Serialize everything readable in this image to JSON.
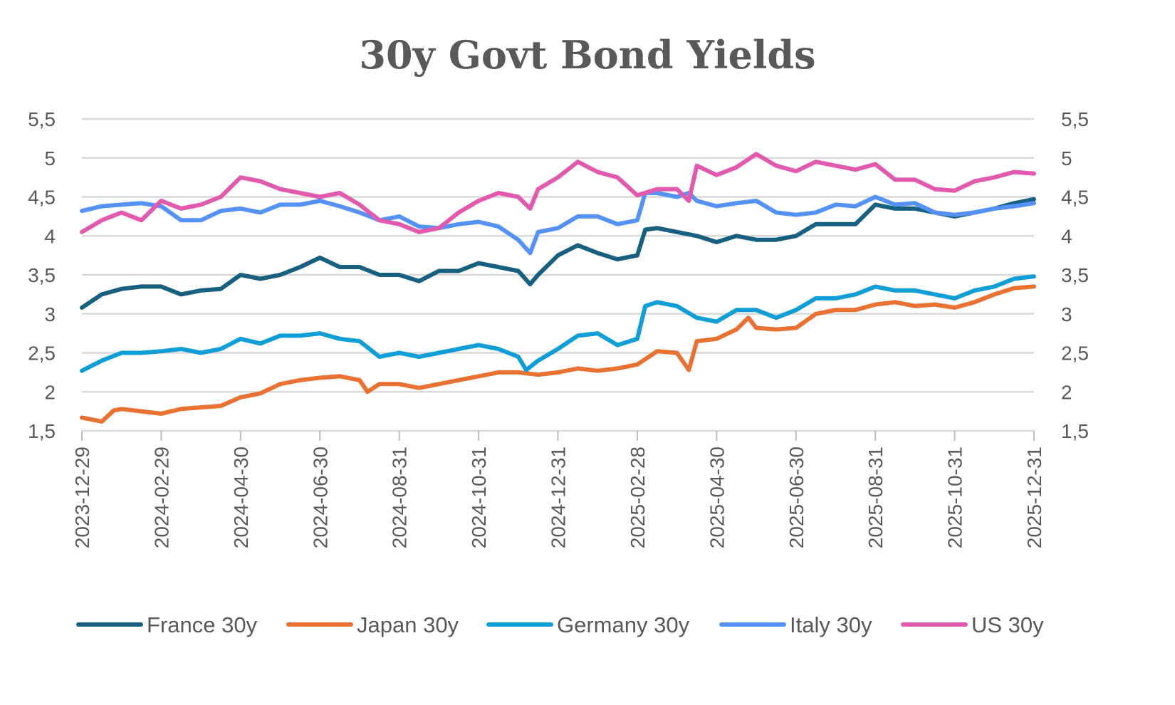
{
  "chart_data": {
    "type": "line",
    "title": "30y Govt Bond Yields",
    "xlabel": "",
    "ylabel": "",
    "ylim": [
      1.5,
      5.5
    ],
    "y_ticks": [
      "1,5",
      "2",
      "2,5",
      "3",
      "3,5",
      "4",
      "4,5",
      "5",
      "5,5"
    ],
    "y_tick_values": [
      1.5,
      2,
      2.5,
      3,
      3.5,
      4,
      4.5,
      5,
      5.5
    ],
    "x_ticks": [
      "2023-12-29",
      "2024-02-29",
      "2024-04-30",
      "2024-06-30",
      "2024-08-31",
      "2024-10-31",
      "2024-12-31",
      "2025-02-28",
      "2025-04-30",
      "2025-06-30",
      "2025-08-31",
      "2025-10-31",
      "2025-12-31"
    ],
    "x_unit": "months since 2023-12-29",
    "xlim": [
      0,
      24
    ],
    "grid": true,
    "legend_position": "bottom",
    "series": [
      {
        "name": "France 30y",
        "color": "#17607f",
        "points": [
          [
            0,
            3.08
          ],
          [
            0.5,
            3.25
          ],
          [
            1,
            3.32
          ],
          [
            1.5,
            3.35
          ],
          [
            2,
            3.35
          ],
          [
            2.5,
            3.25
          ],
          [
            3,
            3.3
          ],
          [
            3.5,
            3.32
          ],
          [
            4,
            3.5
          ],
          [
            4.5,
            3.45
          ],
          [
            5,
            3.5
          ],
          [
            5.5,
            3.6
          ],
          [
            6,
            3.72
          ],
          [
            6.5,
            3.6
          ],
          [
            7,
            3.6
          ],
          [
            7.5,
            3.5
          ],
          [
            8,
            3.5
          ],
          [
            8.5,
            3.42
          ],
          [
            9,
            3.55
          ],
          [
            9.5,
            3.55
          ],
          [
            10,
            3.65
          ],
          [
            10.5,
            3.6
          ],
          [
            11,
            3.55
          ],
          [
            11.3,
            3.38
          ],
          [
            11.5,
            3.5
          ],
          [
            12,
            3.75
          ],
          [
            12.5,
            3.88
          ],
          [
            13,
            3.78
          ],
          [
            13.5,
            3.7
          ],
          [
            14,
            3.75
          ],
          [
            14.2,
            4.08
          ],
          [
            14.5,
            4.1
          ],
          [
            15,
            4.05
          ],
          [
            15.5,
            4.0
          ],
          [
            16,
            3.92
          ],
          [
            16.5,
            4.0
          ],
          [
            17,
            3.95
          ],
          [
            17.5,
            3.95
          ],
          [
            18,
            4.0
          ],
          [
            18.5,
            4.15
          ],
          [
            19,
            4.15
          ],
          [
            19.5,
            4.15
          ],
          [
            20,
            4.4
          ],
          [
            20.5,
            4.35
          ],
          [
            21,
            4.35
          ],
          [
            21.5,
            4.3
          ],
          [
            22,
            4.25
          ],
          [
            22.5,
            4.3
          ],
          [
            23,
            4.35
          ],
          [
            23.5,
            4.42
          ],
          [
            24,
            4.47
          ]
        ]
      },
      {
        "name": "Japan 30y",
        "color": "#e97132",
        "points": [
          [
            0,
            1.67
          ],
          [
            0.5,
            1.62
          ],
          [
            0.8,
            1.76
          ],
          [
            1,
            1.78
          ],
          [
            1.5,
            1.75
          ],
          [
            2,
            1.72
          ],
          [
            2.5,
            1.78
          ],
          [
            3,
            1.8
          ],
          [
            3.5,
            1.82
          ],
          [
            4,
            1.93
          ],
          [
            4.5,
            1.98
          ],
          [
            5,
            2.1
          ],
          [
            5.5,
            2.15
          ],
          [
            6,
            2.18
          ],
          [
            6.5,
            2.2
          ],
          [
            7,
            2.15
          ],
          [
            7.2,
            2.0
          ],
          [
            7.5,
            2.1
          ],
          [
            8,
            2.1
          ],
          [
            8.5,
            2.05
          ],
          [
            9,
            2.1
          ],
          [
            9.5,
            2.15
          ],
          [
            10,
            2.2
          ],
          [
            10.5,
            2.25
          ],
          [
            11,
            2.25
          ],
          [
            11.5,
            2.22
          ],
          [
            12,
            2.25
          ],
          [
            12.5,
            2.3
          ],
          [
            13,
            2.27
          ],
          [
            13.5,
            2.3
          ],
          [
            14,
            2.35
          ],
          [
            14.5,
            2.52
          ],
          [
            15,
            2.5
          ],
          [
            15.3,
            2.28
          ],
          [
            15.5,
            2.65
          ],
          [
            16,
            2.68
          ],
          [
            16.5,
            2.8
          ],
          [
            16.8,
            2.95
          ],
          [
            17,
            2.82
          ],
          [
            17.5,
            2.8
          ],
          [
            18,
            2.82
          ],
          [
            18.5,
            3.0
          ],
          [
            19,
            3.05
          ],
          [
            19.5,
            3.05
          ],
          [
            20,
            3.12
          ],
          [
            20.5,
            3.15
          ],
          [
            21,
            3.1
          ],
          [
            21.5,
            3.12
          ],
          [
            22,
            3.08
          ],
          [
            22.5,
            3.15
          ],
          [
            23,
            3.25
          ],
          [
            23.5,
            3.33
          ],
          [
            24,
            3.35
          ]
        ]
      },
      {
        "name": "Germany 30y",
        "color": "#0f9ed5",
        "points": [
          [
            0,
            2.27
          ],
          [
            0.5,
            2.4
          ],
          [
            1,
            2.5
          ],
          [
            1.5,
            2.5
          ],
          [
            2,
            2.52
          ],
          [
            2.5,
            2.55
          ],
          [
            3,
            2.5
          ],
          [
            3.5,
            2.55
          ],
          [
            4,
            2.68
          ],
          [
            4.5,
            2.62
          ],
          [
            5,
            2.72
          ],
          [
            5.5,
            2.72
          ],
          [
            6,
            2.75
          ],
          [
            6.5,
            2.68
          ],
          [
            7,
            2.65
          ],
          [
            7.5,
            2.45
          ],
          [
            8,
            2.5
          ],
          [
            8.5,
            2.45
          ],
          [
            9,
            2.5
          ],
          [
            9.5,
            2.55
          ],
          [
            10,
            2.6
          ],
          [
            10.5,
            2.55
          ],
          [
            11,
            2.45
          ],
          [
            11.2,
            2.28
          ],
          [
            11.5,
            2.4
          ],
          [
            12,
            2.55
          ],
          [
            12.5,
            2.72
          ],
          [
            13,
            2.75
          ],
          [
            13.5,
            2.6
          ],
          [
            14,
            2.68
          ],
          [
            14.2,
            3.1
          ],
          [
            14.5,
            3.15
          ],
          [
            15,
            3.1
          ],
          [
            15.5,
            2.95
          ],
          [
            16,
            2.9
          ],
          [
            16.5,
            3.05
          ],
          [
            17,
            3.05
          ],
          [
            17.5,
            2.95
          ],
          [
            18,
            3.05
          ],
          [
            18.5,
            3.2
          ],
          [
            19,
            3.2
          ],
          [
            19.5,
            3.25
          ],
          [
            20,
            3.35
          ],
          [
            20.5,
            3.3
          ],
          [
            21,
            3.3
          ],
          [
            21.5,
            3.25
          ],
          [
            22,
            3.2
          ],
          [
            22.5,
            3.3
          ],
          [
            23,
            3.35
          ],
          [
            23.5,
            3.45
          ],
          [
            24,
            3.48
          ]
        ]
      },
      {
        "name": "Italy 30y",
        "color": "#5592f7",
        "points": [
          [
            0,
            4.32
          ],
          [
            0.5,
            4.38
          ],
          [
            1,
            4.4
          ],
          [
            1.5,
            4.42
          ],
          [
            2,
            4.38
          ],
          [
            2.5,
            4.2
          ],
          [
            3,
            4.2
          ],
          [
            3.5,
            4.32
          ],
          [
            4,
            4.35
          ],
          [
            4.5,
            4.3
          ],
          [
            5,
            4.4
          ],
          [
            5.5,
            4.4
          ],
          [
            6,
            4.45
          ],
          [
            6.5,
            4.38
          ],
          [
            7,
            4.3
          ],
          [
            7.5,
            4.2
          ],
          [
            8,
            4.25
          ],
          [
            8.5,
            4.12
          ],
          [
            9,
            4.1
          ],
          [
            9.5,
            4.15
          ],
          [
            10,
            4.18
          ],
          [
            10.5,
            4.12
          ],
          [
            11,
            3.95
          ],
          [
            11.3,
            3.78
          ],
          [
            11.5,
            4.05
          ],
          [
            12,
            4.1
          ],
          [
            12.5,
            4.25
          ],
          [
            13,
            4.25
          ],
          [
            13.5,
            4.15
          ],
          [
            14,
            4.2
          ],
          [
            14.2,
            4.55
          ],
          [
            14.5,
            4.55
          ],
          [
            15,
            4.5
          ],
          [
            15.3,
            4.55
          ],
          [
            15.5,
            4.45
          ],
          [
            16,
            4.38
          ],
          [
            16.5,
            4.42
          ],
          [
            17,
            4.45
          ],
          [
            17.5,
            4.3
          ],
          [
            18,
            4.27
          ],
          [
            18.5,
            4.3
          ],
          [
            19,
            4.4
          ],
          [
            19.5,
            4.38
          ],
          [
            20,
            4.5
          ],
          [
            20.5,
            4.4
          ],
          [
            21,
            4.42
          ],
          [
            21.5,
            4.3
          ],
          [
            22,
            4.27
          ],
          [
            22.5,
            4.3
          ],
          [
            23,
            4.35
          ],
          [
            23.5,
            4.38
          ],
          [
            24,
            4.42
          ]
        ]
      },
      {
        "name": "US 30y",
        "color": "#e25aae",
        "points": [
          [
            0,
            4.05
          ],
          [
            0.5,
            4.2
          ],
          [
            1,
            4.3
          ],
          [
            1.5,
            4.2
          ],
          [
            2,
            4.45
          ],
          [
            2.5,
            4.35
          ],
          [
            3,
            4.4
          ],
          [
            3.5,
            4.5
          ],
          [
            4,
            4.75
          ],
          [
            4.5,
            4.7
          ],
          [
            5,
            4.6
          ],
          [
            5.5,
            4.55
          ],
          [
            6,
            4.5
          ],
          [
            6.5,
            4.55
          ],
          [
            7,
            4.4
          ],
          [
            7.5,
            4.2
          ],
          [
            8,
            4.15
          ],
          [
            8.5,
            4.05
          ],
          [
            9,
            4.1
          ],
          [
            9.5,
            4.3
          ],
          [
            10,
            4.45
          ],
          [
            10.5,
            4.55
          ],
          [
            11,
            4.5
          ],
          [
            11.3,
            4.35
          ],
          [
            11.5,
            4.6
          ],
          [
            12,
            4.75
          ],
          [
            12.5,
            4.95
          ],
          [
            13,
            4.82
          ],
          [
            13.5,
            4.75
          ],
          [
            14,
            4.52
          ],
          [
            14.5,
            4.6
          ],
          [
            15,
            4.6
          ],
          [
            15.3,
            4.45
          ],
          [
            15.5,
            4.9
          ],
          [
            16,
            4.78
          ],
          [
            16.5,
            4.88
          ],
          [
            17,
            5.05
          ],
          [
            17.5,
            4.9
          ],
          [
            18,
            4.83
          ],
          [
            18.5,
            4.95
          ],
          [
            19,
            4.9
          ],
          [
            19.5,
            4.85
          ],
          [
            20,
            4.92
          ],
          [
            20.5,
            4.72
          ],
          [
            21,
            4.72
          ],
          [
            21.5,
            4.6
          ],
          [
            22,
            4.58
          ],
          [
            22.5,
            4.7
          ],
          [
            23,
            4.75
          ],
          [
            23.5,
            4.82
          ],
          [
            24,
            4.8
          ]
        ]
      }
    ]
  }
}
